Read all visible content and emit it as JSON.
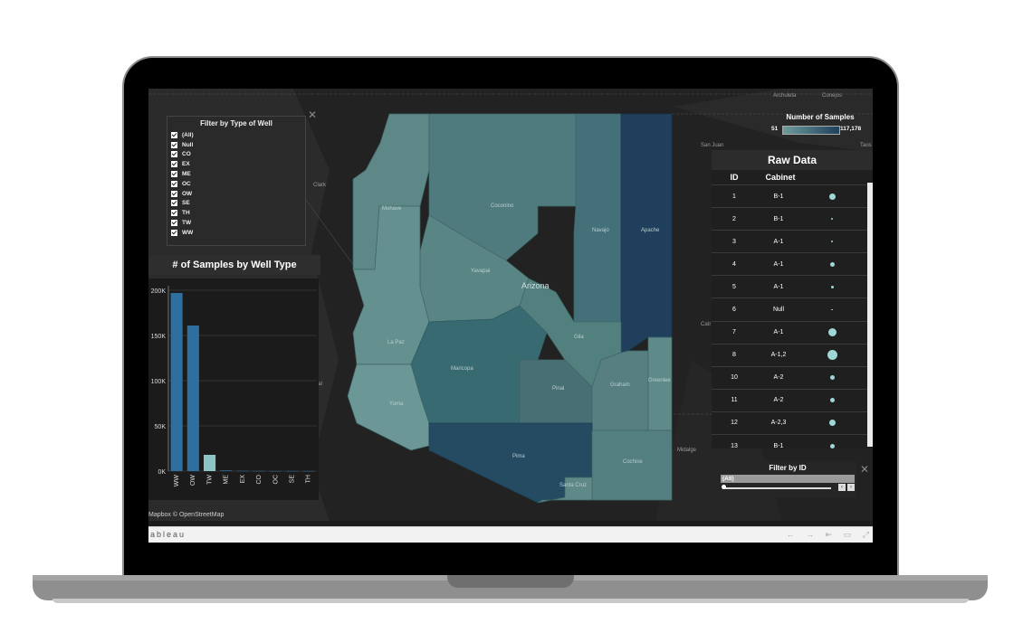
{
  "filter_well_type": {
    "title": "Filter by Type of Well",
    "items": [
      "(All)",
      "Null",
      "CO",
      "EX",
      "ME",
      "OC",
      "OW",
      "SE",
      "TH",
      "TW",
      "WW"
    ]
  },
  "bar_chart": {
    "title": "# of Samples by Well Type"
  },
  "chart_data": {
    "type": "bar",
    "title": "# of Samples by Well Type",
    "categories": [
      "WW",
      "OW",
      "TW",
      "ME",
      "EX",
      "CO",
      "OC",
      "SE",
      "TH"
    ],
    "values": [
      197000,
      161000,
      18000,
      800,
      300,
      200,
      100,
      100,
      100
    ],
    "ylim": [
      0,
      205000
    ],
    "yticks": [
      0,
      50000,
      100000,
      150000,
      200000
    ],
    "ytick_labels": [
      "0K",
      "50K",
      "100K",
      "150K",
      "200K"
    ],
    "colors": [
      "#2d6f9e",
      "#2d6f9e",
      "#8fc4c4",
      "#2d6f9e",
      "#2d6f9e",
      "#2d6f9e",
      "#2d6f9e",
      "#2d6f9e",
      "#2d6f9e"
    ],
    "grid": true,
    "xlabel": "",
    "ylabel": ""
  },
  "legend": {
    "title": "Number of Samples",
    "min": "51",
    "max": "117,178",
    "color_low": "#6e9c9c",
    "color_high": "#1f3f5c"
  },
  "map": {
    "state_label": "Arizona",
    "credit": "Mapbox © OpenStreetMap",
    "counties": [
      "Mohave",
      "Coconino",
      "Navajo",
      "Apache",
      "Yavapai",
      "La Paz",
      "Maricopa",
      "Gila",
      "Greenlee",
      "Graham",
      "Pinal",
      "Yuma",
      "Pima",
      "Cochise",
      "Santa Cruz"
    ],
    "cities": [
      "Clark",
      "San Juan",
      "Archuleta",
      "Conejos",
      "Taos",
      "Midalge",
      "Catr",
      "rial"
    ]
  },
  "raw_data": {
    "title": "Raw Data",
    "headers": {
      "id": "ID",
      "cabinet": "Cabinet"
    },
    "rows": [
      {
        "id": "1",
        "cabinet": "B-1",
        "size": 7
      },
      {
        "id": "2",
        "cabinet": "B-1",
        "size": 2
      },
      {
        "id": "3",
        "cabinet": "A-1",
        "size": 2
      },
      {
        "id": "4",
        "cabinet": "A-1",
        "size": 5
      },
      {
        "id": "5",
        "cabinet": "A-1",
        "size": 3
      },
      {
        "id": "6",
        "cabinet": "Null",
        "size": 1.5
      },
      {
        "id": "7",
        "cabinet": "A-1",
        "size": 9
      },
      {
        "id": "8",
        "cabinet": "A-1,2",
        "size": 11
      },
      {
        "id": "10",
        "cabinet": "A-2",
        "size": 5
      },
      {
        "id": "11",
        "cabinet": "A-2",
        "size": 5
      },
      {
        "id": "12",
        "cabinet": "A-2,3",
        "size": 7
      },
      {
        "id": "13",
        "cabinet": "B-1",
        "size": 5
      }
    ]
  },
  "id_filter": {
    "title": "Filter by ID",
    "selected": "(All)"
  },
  "toolbar": {
    "brand": "ableau"
  }
}
